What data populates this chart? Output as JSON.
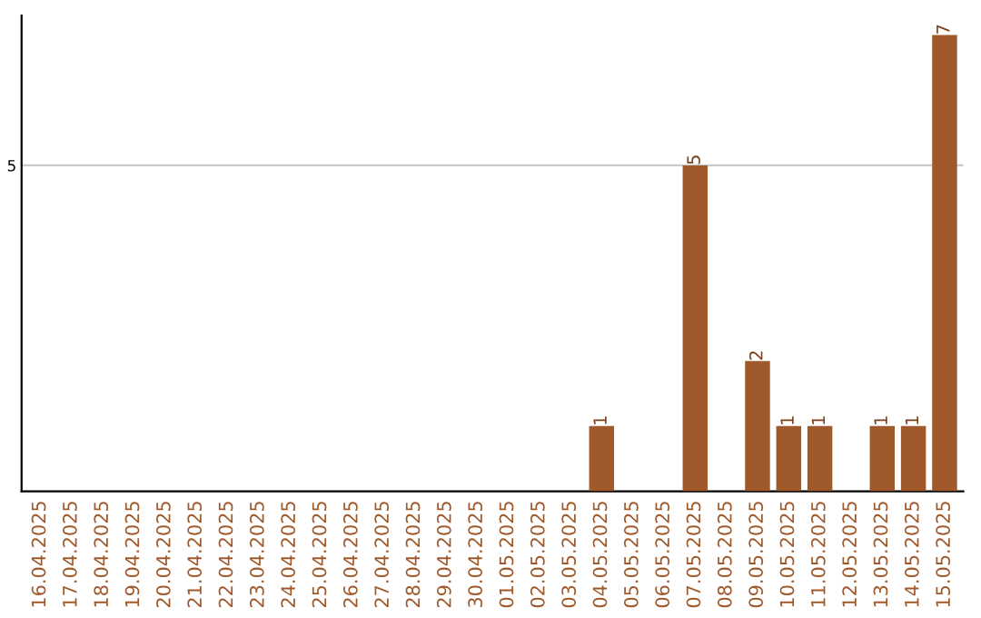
{
  "chart_data": {
    "type": "bar",
    "categories": [
      "16.04.2025",
      "17.04.2025",
      "18.04.2025",
      "19.04.2025",
      "20.04.2025",
      "21.04.2025",
      "22.04.2025",
      "23.04.2025",
      "24.04.2025",
      "25.04.2025",
      "26.04.2025",
      "27.04.2025",
      "28.04.2025",
      "29.04.2025",
      "30.04.2025",
      "01.05.2025",
      "02.05.2025",
      "03.05.2025",
      "04.05.2025",
      "05.05.2025",
      "06.05.2025",
      "07.05.2025",
      "08.05.2025",
      "09.05.2025",
      "10.05.2025",
      "11.05.2025",
      "12.05.2025",
      "13.05.2025",
      "14.05.2025",
      "15.05.2025"
    ],
    "values": [
      null,
      null,
      null,
      null,
      null,
      null,
      null,
      null,
      null,
      null,
      null,
      null,
      null,
      null,
      null,
      null,
      null,
      null,
      1,
      null,
      null,
      5,
      null,
      2,
      1,
      1,
      null,
      1,
      1,
      7
    ],
    "color": "#a0592a",
    "ylim": [
      0,
      7.3
    ],
    "yticks": [
      5
    ],
    "grid": "y",
    "data_labels": true
  }
}
